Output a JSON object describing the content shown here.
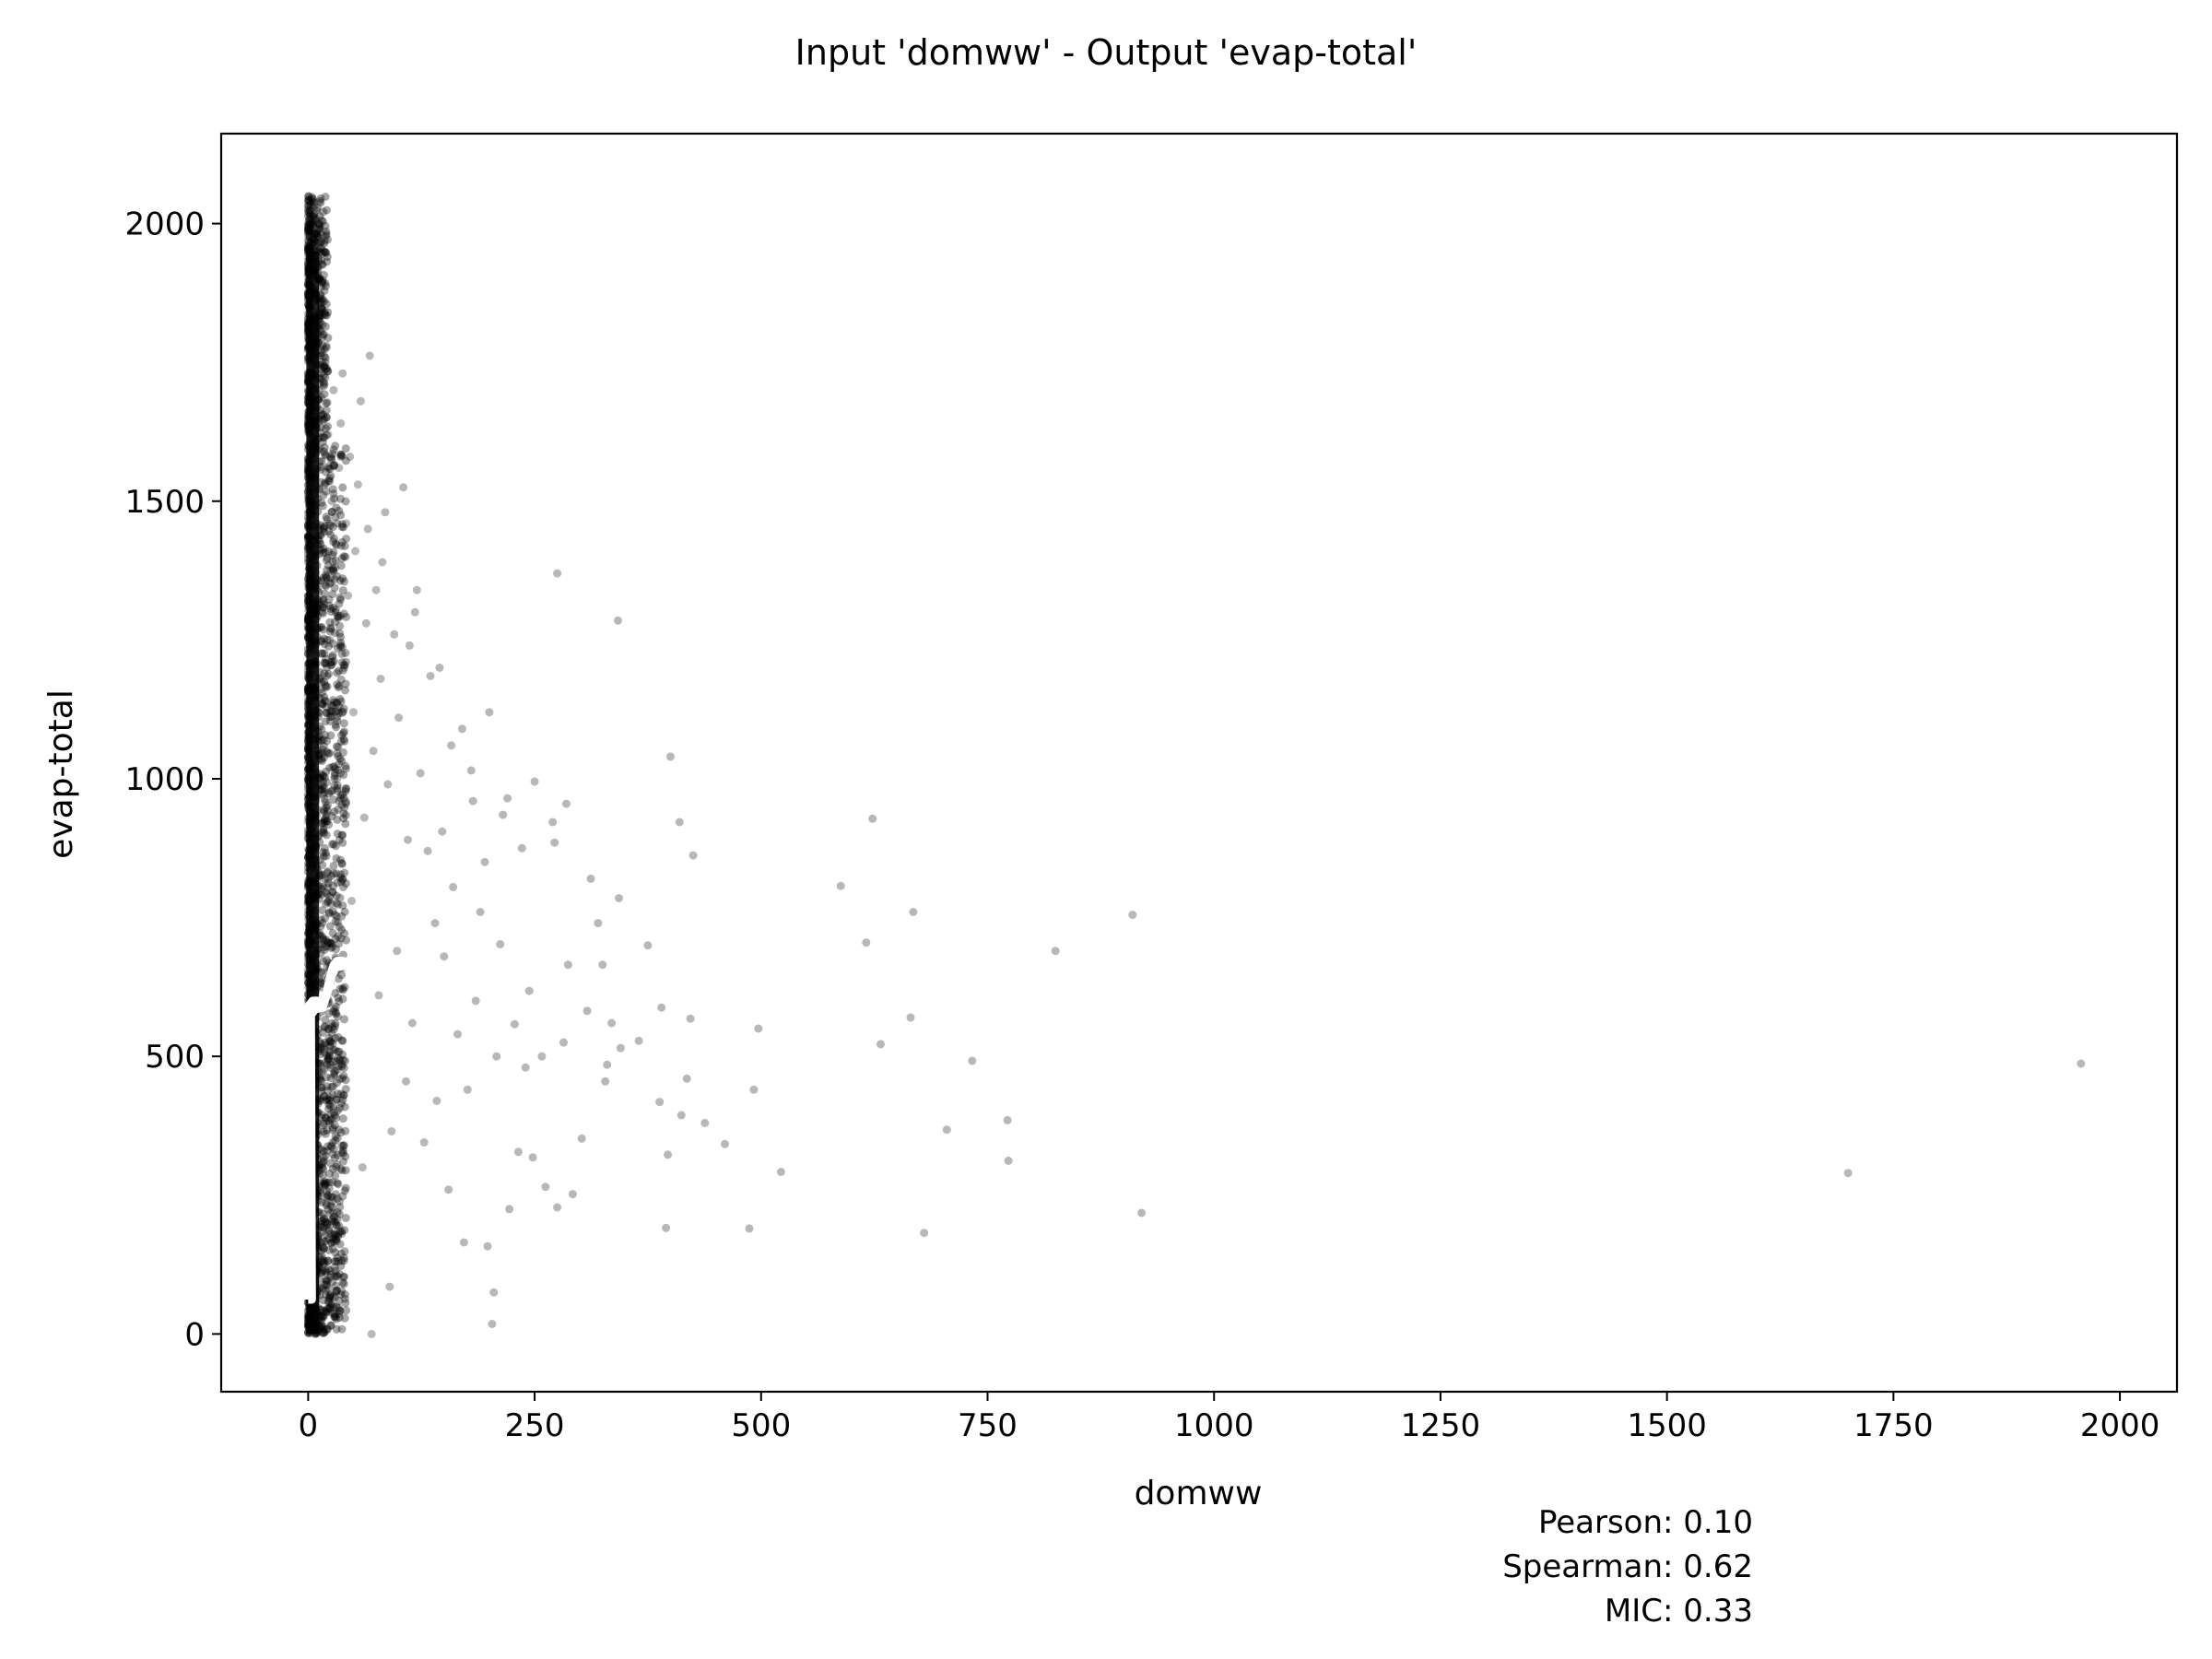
{
  "chart_data": {
    "type": "scatter",
    "title": "Input 'domww' - Output 'evap-total'",
    "xlabel": "domww",
    "ylabel": "evap-total",
    "xlim": [
      -96,
      2063
    ],
    "ylim": [
      -104,
      2162
    ],
    "x_ticks": [
      0,
      250,
      500,
      750,
      1000,
      1250,
      1500,
      1750,
      2000
    ],
    "x_tick_labels": [
      "0",
      "250",
      "500",
      "750",
      "1000",
      "1250",
      "1500",
      "1750",
      "2000"
    ],
    "y_ticks": [
      0,
      500,
      1000,
      1500,
      2000
    ],
    "y_tick_labels": [
      "0",
      "500",
      "1000",
      "1500",
      "2000"
    ],
    "grid": false,
    "point_color": "#000000",
    "point_alpha": 0.28,
    "dense_cluster": {
      "description_x_range": [
        0,
        40
      ],
      "y_range": [
        0,
        2050
      ]
    },
    "points": [
      [
        1957,
        487
      ],
      [
        1700,
        290
      ],
      [
        920,
        218
      ],
      [
        910,
        755
      ],
      [
        825,
        690
      ],
      [
        772,
        385
      ],
      [
        773,
        312
      ],
      [
        733,
        492
      ],
      [
        705,
        368
      ],
      [
        680,
        182
      ],
      [
        668,
        760
      ],
      [
        665,
        570
      ],
      [
        632,
        522
      ],
      [
        623,
        928
      ],
      [
        616,
        705
      ],
      [
        588,
        807
      ],
      [
        522,
        292
      ],
      [
        497,
        550
      ],
      [
        492,
        440
      ],
      [
        487,
        190
      ],
      [
        460,
        342
      ],
      [
        438,
        380
      ],
      [
        425,
        862
      ],
      [
        422,
        568
      ],
      [
        418,
        460
      ],
      [
        412,
        394
      ],
      [
        410,
        922
      ],
      [
        400,
        1040
      ],
      [
        397,
        323
      ],
      [
        395,
        191
      ],
      [
        390,
        588
      ],
      [
        388,
        418
      ],
      [
        375,
        700
      ],
      [
        365,
        528
      ],
      [
        345,
        515
      ],
      [
        342,
        1285
      ],
      [
        343,
        785
      ],
      [
        335,
        560
      ],
      [
        330,
        485
      ],
      [
        328,
        455
      ],
      [
        325,
        665
      ],
      [
        320,
        740
      ],
      [
        312,
        820
      ],
      [
        308,
        582
      ],
      [
        302,
        352
      ],
      [
        292,
        252
      ],
      [
        287,
        665
      ],
      [
        285,
        955
      ],
      [
        282,
        525
      ],
      [
        275,
        1370
      ],
      [
        275,
        228
      ],
      [
        272,
        885
      ],
      [
        270,
        922
      ],
      [
        262,
        265
      ],
      [
        258,
        500
      ],
      [
        250,
        995
      ],
      [
        248,
        318
      ],
      [
        244,
        618
      ],
      [
        240,
        480
      ],
      [
        236,
        875
      ],
      [
        232,
        328
      ],
      [
        228,
        558
      ],
      [
        222,
        225
      ],
      [
        220,
        965
      ],
      [
        215,
        935
      ],
      [
        212,
        702
      ],
      [
        208,
        500
      ],
      [
        205,
        75
      ],
      [
        203,
        18
      ],
      [
        200,
        1120
      ],
      [
        198,
        158
      ],
      [
        195,
        850
      ],
      [
        190,
        760
      ],
      [
        185,
        600
      ],
      [
        182,
        960
      ],
      [
        180,
        1015
      ],
      [
        176,
        440
      ],
      [
        172,
        165
      ],
      [
        170,
        1090
      ],
      [
        165,
        540
      ],
      [
        160,
        805
      ],
      [
        158,
        1060
      ],
      [
        155,
        260
      ],
      [
        150,
        680
      ],
      [
        148,
        905
      ],
      [
        145,
        1200
      ],
      [
        142,
        420
      ],
      [
        140,
        740
      ],
      [
        135,
        1185
      ],
      [
        132,
        870
      ],
      [
        128,
        345
      ],
      [
        124,
        1010
      ],
      [
        120,
        1340
      ],
      [
        118,
        1300
      ],
      [
        115,
        560
      ],
      [
        112,
        1240
      ],
      [
        110,
        890
      ],
      [
        108,
        455
      ],
      [
        105,
        1525
      ],
      [
        100,
        1110
      ],
      [
        98,
        690
      ],
      [
        95,
        1260
      ],
      [
        92,
        365
      ],
      [
        90,
        85
      ],
      [
        88,
        990
      ],
      [
        85,
        1480
      ],
      [
        82,
        1390
      ],
      [
        80,
        1180
      ],
      [
        78,
        610
      ],
      [
        75,
        1340
      ],
      [
        72,
        1050
      ],
      [
        70,
        0
      ],
      [
        68,
        1762
      ],
      [
        66,
        1450
      ],
      [
        64,
        1280
      ],
      [
        62,
        930
      ],
      [
        60,
        300
      ],
      [
        58,
        1680
      ],
      [
        55,
        1530
      ],
      [
        52,
        1410
      ],
      [
        50,
        1120
      ],
      [
        48,
        780
      ],
      [
        46,
        1580
      ],
      [
        44,
        1330
      ],
      [
        42,
        1460
      ],
      [
        40,
        1200
      ],
      [
        38,
        1730
      ],
      [
        36,
        1640
      ],
      [
        34,
        1560
      ],
      [
        32,
        1000
      ],
      [
        30,
        1380
      ],
      [
        28,
        1700
      ],
      [
        26,
        1500
      ],
      [
        24,
        1250
      ],
      [
        22,
        1620
      ],
      [
        20,
        1780
      ],
      [
        18,
        1860
      ],
      [
        16,
        1800
      ],
      [
        14,
        1720
      ],
      [
        12,
        1900
      ],
      [
        10,
        1950
      ],
      [
        8,
        1980
      ],
      [
        6,
        2010
      ],
      [
        4,
        2048
      ],
      [
        2,
        2025
      ],
      [
        0,
        1990
      ]
    ],
    "contour_line_color": "#ffffff",
    "contour": [
      [
        0,
        62
      ],
      [
        -2,
        560
      ],
      [
        0,
        590
      ],
      [
        5,
        600
      ],
      [
        12,
        600
      ],
      [
        18,
        598
      ],
      [
        20,
        610
      ],
      [
        24,
        642
      ],
      [
        28,
        664
      ],
      [
        32,
        672
      ],
      [
        38,
        672
      ],
      [
        44,
        670
      ],
      [
        46,
        664
      ],
      [
        44,
        660
      ],
      [
        40,
        664
      ],
      [
        36,
        662
      ],
      [
        30,
        660
      ],
      [
        26,
        646
      ],
      [
        22,
        620
      ],
      [
        16,
        588
      ],
      [
        8,
        585
      ],
      [
        3,
        575
      ],
      [
        4,
        62
      ],
      [
        0,
        62
      ]
    ],
    "annotations": [
      {
        "label": "Pearson",
        "value": "0.10"
      },
      {
        "label": "Spearman",
        "value": "0.62"
      },
      {
        "label": "MIC",
        "value": "0.33"
      }
    ]
  }
}
